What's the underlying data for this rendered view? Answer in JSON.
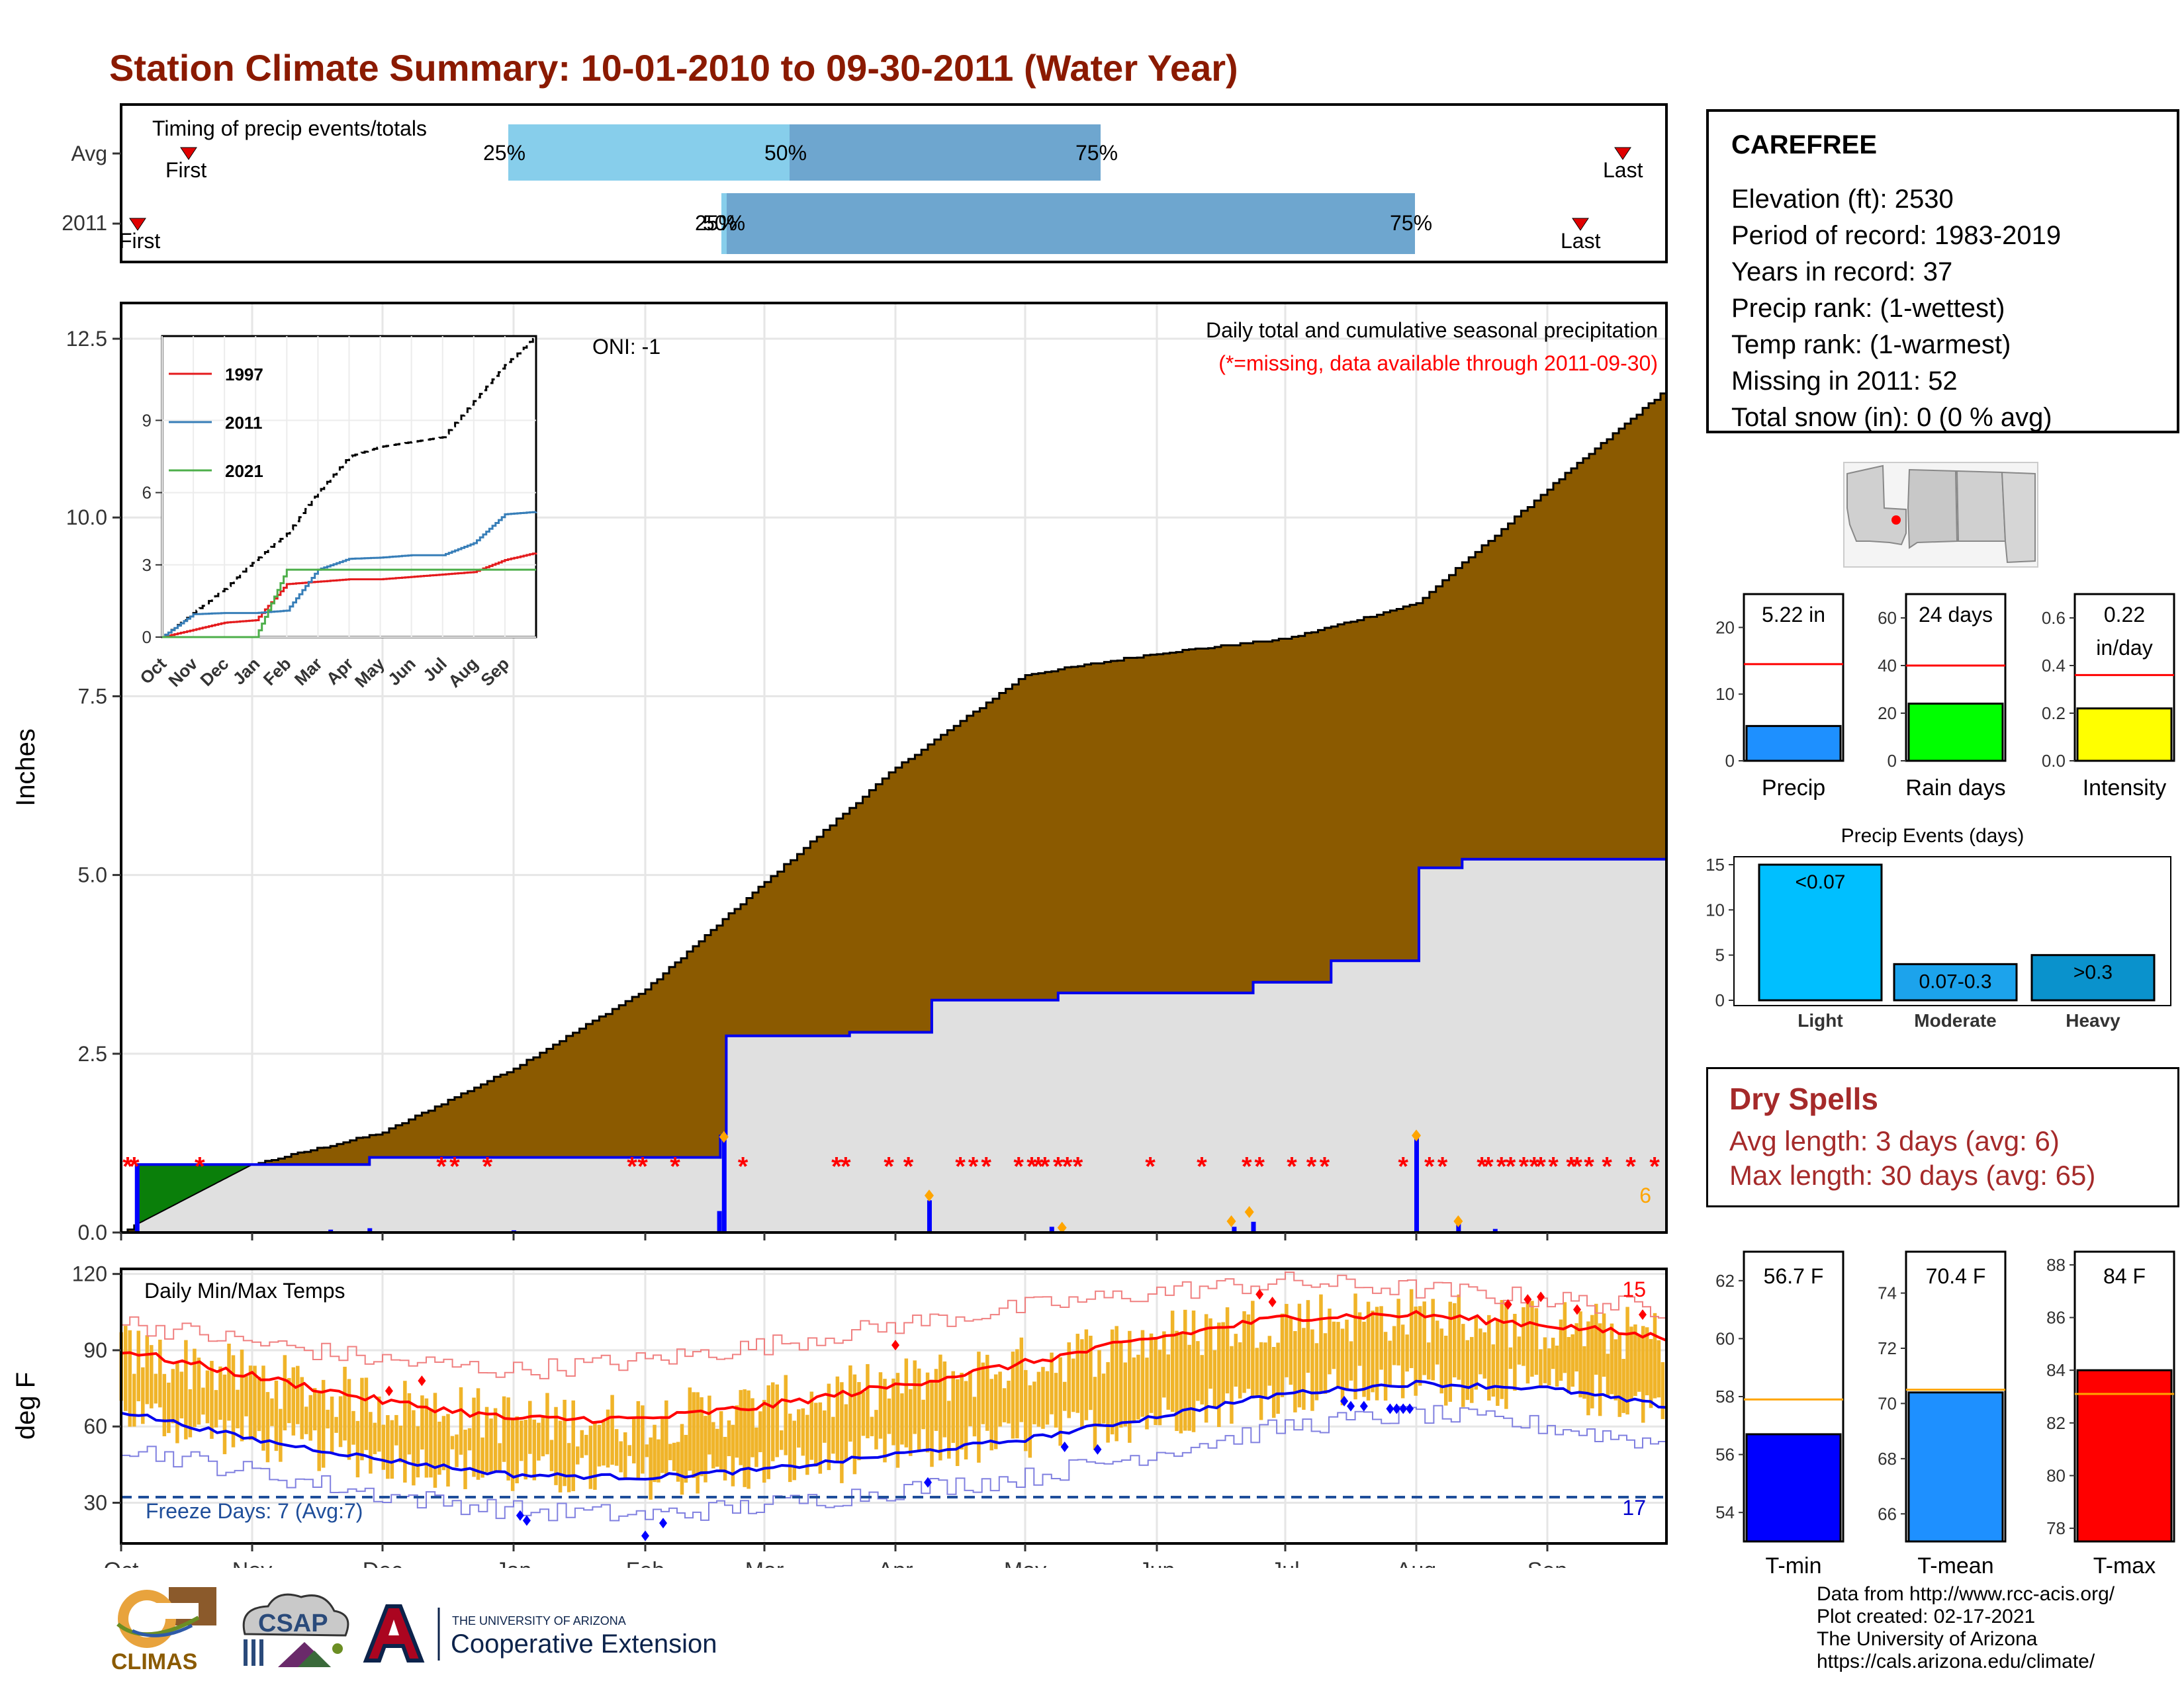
{
  "title": "Station Climate Summary: 10-01-2010 to 09-30-2011 (Water Year)",
  "colors": {
    "title": "#8b1a00",
    "cum_area": "#8b5a00",
    "cum_area_2011": "#e0e0e0",
    "line_2011": "#0000ee",
    "missing": "#ff0000",
    "temp_bar": "#f0b429",
    "tmax_avg": "#ff0000",
    "tmin_avg": "#0000ee",
    "dry_spell": "#a52a2a"
  },
  "station": {
    "name": "CAREFREE",
    "lines": [
      "Elevation (ft): 2530",
      "Period of record: 1983-2019",
      "Years in record: 37",
      "Precip rank:  (1-wettest)",
      "Temp rank:  (1-warmest)",
      "Missing in 2011: 52",
      "Total snow (in): 0 (0 % avg)"
    ]
  },
  "timing": {
    "title": "Timing of precip events/totals",
    "rows": [
      {
        "label": "Avg",
        "p25": "25%",
        "p50": "50%",
        "p75": "75%",
        "first": "First",
        "last": "Last"
      },
      {
        "label": "2011",
        "p25": "25%",
        "p50": "50%",
        "p75": "75%",
        "first": "First",
        "last": "Last"
      }
    ]
  },
  "precip_chart": {
    "ylabel": "Inches",
    "yticks": [
      "0.0",
      "2.5",
      "5.0",
      "7.5",
      "10.0",
      "12.5"
    ],
    "oni": "ONI: -1",
    "caption": "Daily total and cumulative seasonal precipitation",
    "missing_note": "(*=missing, data available through 2011-09-30)",
    "count_label": "6"
  },
  "inset": {
    "yticks": [
      "0",
      "3",
      "6",
      "9"
    ],
    "months": [
      "Oct",
      "Nov",
      "Dec",
      "Jan",
      "Feb",
      "Mar",
      "Apr",
      "May",
      "Jun",
      "Jul",
      "Aug",
      "Sep"
    ],
    "legend": [
      "1997",
      "2011",
      "2021"
    ]
  },
  "temp_chart": {
    "ylabel": "deg F",
    "yticks": [
      "30",
      "60",
      "90",
      "120"
    ],
    "title": "Daily Min/Max Temps",
    "freeze": "Freeze Days: 7 (Avg:7)",
    "hot_count": "15",
    "cold_count": "17"
  },
  "x_months": [
    "Oct",
    "Nov",
    "Dec",
    "Jan",
    "Feb",
    "Mar",
    "Apr",
    "May",
    "Jun",
    "Jul",
    "Aug",
    "Sep"
  ],
  "mini_precip": [
    {
      "name": "precip",
      "value_label": "5.22 in",
      "xlabel": "Precip",
      "yticks": [
        "0",
        "10",
        "20"
      ],
      "ymax": 25,
      "value": 5.22,
      "avg": 14.5,
      "color": "#1e90ff"
    },
    {
      "name": "rain-days",
      "value_label": "24 days",
      "xlabel": "Rain days",
      "yticks": [
        "0",
        "20",
        "40",
        "60"
      ],
      "ymax": 70,
      "value": 24,
      "avg": 40,
      "color": "#00ff00"
    },
    {
      "name": "intensity",
      "value_label": "0.22 in/day",
      "xlabel": "Intensity",
      "yticks": [
        "0.0",
        "0.2",
        "0.4",
        "0.6"
      ],
      "ymax": 0.7,
      "value": 0.22,
      "avg": 0.36,
      "color": "#ffff00"
    }
  ],
  "events": {
    "title": "Precip Events (days)",
    "yticks": [
      "0",
      "5",
      "10",
      "15"
    ],
    "bars": [
      {
        "name": "light",
        "label": "<0.07",
        "cat": "Light",
        "value": 15,
        "color": "#00bfff"
      },
      {
        "name": "moderate",
        "label": "0.07-0.3",
        "cat": "Moderate",
        "value": 4,
        "color": "#1ca3ec"
      },
      {
        "name": "heavy",
        "label": ">0.3",
        "cat": "Heavy",
        "value": 5,
        "color": "#0a92cc"
      }
    ]
  },
  "dry_spells": {
    "title": "Dry Spells",
    "avg": "Avg length: 3 days (avg: 6)",
    "max": "Max length: 30 days (avg: 65)"
  },
  "mini_temp": [
    {
      "name": "tmin",
      "value_label": "56.7 F",
      "xlabel": "T-min",
      "yticks": [
        "54",
        "56",
        "58",
        "60",
        "62"
      ],
      "ymin": 53,
      "ymax": 63,
      "value": 56.7,
      "avg": 57.9,
      "color": "#0000ff"
    },
    {
      "name": "tmean",
      "value_label": "70.4 F",
      "xlabel": "T-mean",
      "yticks": [
        "66",
        "68",
        "70",
        "72",
        "74"
      ],
      "ymin": 65,
      "ymax": 75.5,
      "value": 70.4,
      "avg": 70.5,
      "color": "#1e90ff"
    },
    {
      "name": "tmax",
      "value_label": "84 F",
      "xlabel": "T-max",
      "yticks": [
        "78",
        "80",
        "82",
        "84",
        "86",
        "88"
      ],
      "ymin": 77.5,
      "ymax": 88.5,
      "value": 84,
      "avg": 83.1,
      "color": "#ff0000"
    }
  ],
  "footer": [
    "Data from http://www.rcc-acis.org/",
    "Plot created: 02-17-2021",
    "The University of Arizona",
    "https://cals.arizona.edu/climate/"
  ],
  "logos": {
    "climas": "CLIMAS",
    "csap": "CSAP",
    "ua_small": "THE UNIVERSITY OF ARIZONA",
    "coop": "Cooperative Extension"
  },
  "chart_data": [
    {
      "type": "area",
      "name": "cumulative-precip",
      "xlabel": "",
      "ylabel": "Inches",
      "ylim": [
        0,
        13
      ],
      "x": [
        "Oct",
        "Nov",
        "Dec",
        "Jan",
        "Feb",
        "Mar",
        "Apr",
        "May",
        "Jun",
        "Jul",
        "Aug",
        "Sep",
        "Sep-end"
      ],
      "series": [
        {
          "values": [
            0.0,
            0.95,
            1.4,
            2.3,
            3.4,
            4.9,
            6.5,
            7.8,
            8.1,
            8.3,
            8.8,
            10.4,
            11.8
          ]
        },
        {
          "name": "2011",
          "values": [
            0.0,
            0.95,
            1.05,
            1.05,
            1.05,
            2.75,
            2.8,
            3.25,
            3.35,
            3.4,
            3.8,
            5.1,
            5.22
          ]
        }
      ]
    },
    {
      "type": "line",
      "name": "inset-cumulative",
      "ylim": [
        0,
        12.5
      ],
      "x": [
        "Oct",
        "Nov",
        "Dec",
        "Jan",
        "Feb",
        "Mar",
        "Apr",
        "May",
        "Jun",
        "Jul",
        "Aug",
        "Sep",
        "Sep-end"
      ],
      "series": [
        {
          "values": [
            0.0,
            1.0,
            2.0,
            3.2,
            4.3,
            6.0,
            7.5,
            7.9,
            8.1,
            8.3,
            9.8,
            11.3,
            12.5
          ]
        },
        {
          "name": "1997",
          "values": [
            0.0,
            0.3,
            0.6,
            0.7,
            2.2,
            2.3,
            2.4,
            2.4,
            2.5,
            2.6,
            2.7,
            3.2,
            3.5
          ]
        },
        {
          "name": "2011",
          "values": [
            0.0,
            0.95,
            1.0,
            1.0,
            1.1,
            2.8,
            3.25,
            3.3,
            3.4,
            3.4,
            3.9,
            5.1,
            5.2
          ]
        },
        {
          "name": "2021",
          "values": [
            0.0,
            0.0,
            0.0,
            0.0,
            2.8,
            2.8,
            2.8,
            2.8,
            2.8,
            2.8,
            2.8,
            2.8,
            2.8
          ]
        }
      ]
    },
    {
      "type": "line",
      "name": "temperatures",
      "ylabel": "deg F",
      "ylim": [
        14,
        122
      ],
      "x": [
        "Oct",
        "Nov",
        "Dec",
        "Jan",
        "Feb",
        "Mar",
        "Apr",
        "May",
        "Jun",
        "Jul",
        "Aug",
        "Sep",
        "Sep-end"
      ],
      "series": [
        {
          "name": "avg-max",
          "values": [
            90,
            80,
            70,
            63,
            63,
            68,
            76,
            85,
            95,
            103,
            104,
            100,
            95
          ]
        },
        {
          "name": "avg-min",
          "values": [
            66,
            55,
            47,
            41,
            40,
            43,
            49,
            55,
            64,
            73,
            77,
            75,
            68
          ]
        },
        {
          "name": "record-max",
          "values": [
            101,
            93,
            86,
            82,
            86,
            92,
            100,
            107,
            113,
            117,
            114,
            110,
            106
          ]
        },
        {
          "name": "record-min",
          "values": [
            52,
            42,
            33,
            27,
            25,
            29,
            35,
            40,
            50,
            60,
            65,
            60,
            53
          ]
        }
      ]
    }
  ]
}
